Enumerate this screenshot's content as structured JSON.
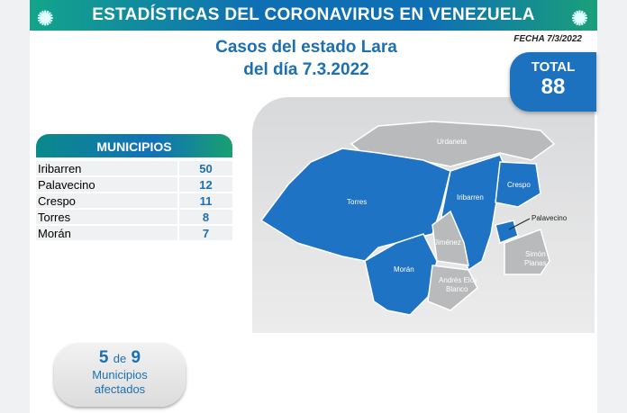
{
  "header": {
    "title": "ESTADÍSTICAS DEL CORONAVIRUS EN VENEZUELA",
    "date": "FECHA 7/3/2022"
  },
  "heading": {
    "line1": "Casos del estado Lara",
    "line2": "del día 7.3.2022"
  },
  "total": {
    "label": "TOTAL",
    "value": "88"
  },
  "table": {
    "header": "MUNICIPIOS",
    "rows": [
      {
        "name": "Iribarren",
        "count": "50"
      },
      {
        "name": "Palavecino",
        "count": "12"
      },
      {
        "name": "Crespo",
        "count": "11"
      },
      {
        "name": "Torres",
        "count": "8"
      },
      {
        "name": "Morán",
        "count": "7"
      }
    ]
  },
  "summary": {
    "affected": "5",
    "de": "de",
    "total": "9",
    "line1": "Municipios",
    "line2": "afectados"
  },
  "map": {
    "affected_color": "#1f73c4",
    "unaffected_color": "#b9babc",
    "labels": {
      "urdaneta": "Urdaneta",
      "torres": "Torres",
      "iribarren": "Iribarren",
      "crespo": "Crespo",
      "palavecino": "Palavecino",
      "jimenez": "Jiménez",
      "moran": "Morán",
      "aeb1": "Andrés Eloy",
      "aeb2": "Blanco",
      "sp1": "Simón",
      "sp2": "Planas"
    }
  }
}
